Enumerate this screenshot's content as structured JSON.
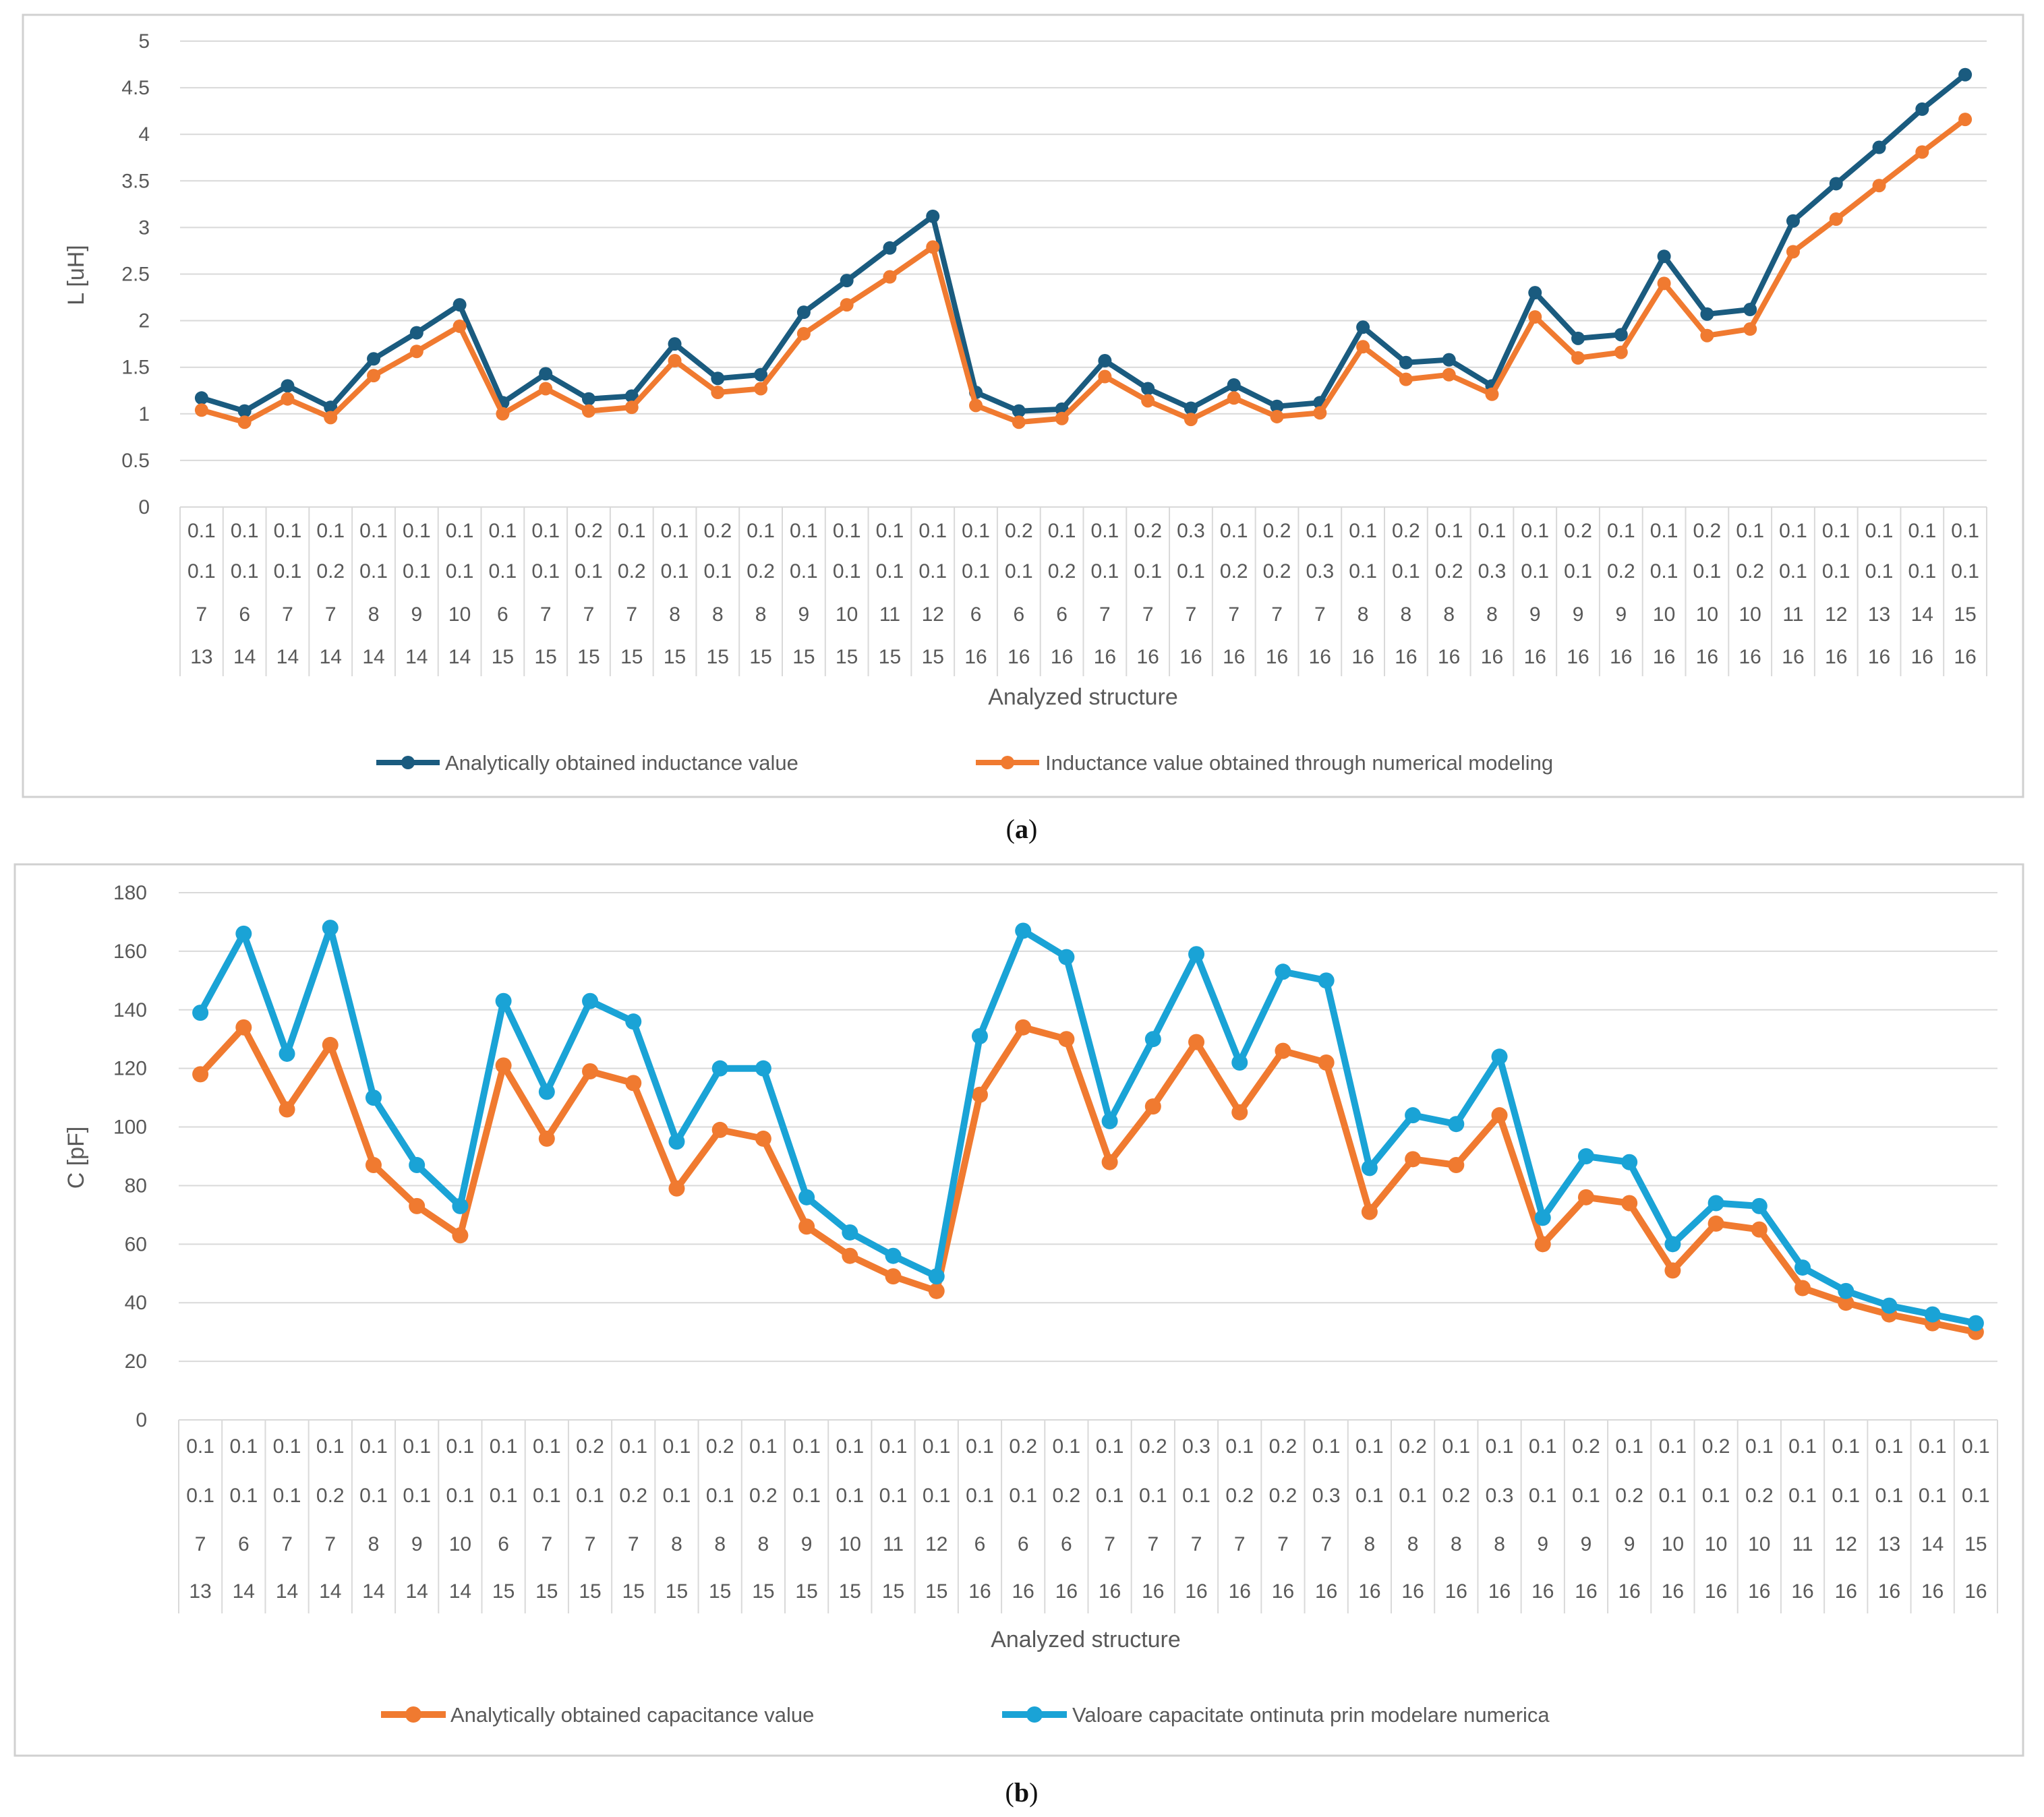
{
  "chart_data": [
    {
      "id": "a",
      "type": "line",
      "panel_label": "a",
      "ylabel": "L [uH]",
      "xlabel": "Analyzed structure",
      "ylim": [
        0,
        5
      ],
      "yticks": [
        "0",
        "0.5",
        "1",
        "1.5",
        "2",
        "2.5",
        "3",
        "3.5",
        "4",
        "4.5",
        "5"
      ],
      "grid": true,
      "legend_position": "bottom",
      "categories": [
        [
          "0.1",
          "0.1",
          "7",
          "13"
        ],
        [
          "0.1",
          "0.1",
          "6",
          "14"
        ],
        [
          "0.1",
          "0.1",
          "7",
          "14"
        ],
        [
          "0.1",
          "0.2",
          "7",
          "14"
        ],
        [
          "0.1",
          "0.1",
          "8",
          "14"
        ],
        [
          "0.1",
          "0.1",
          "9",
          "14"
        ],
        [
          "0.1",
          "0.1",
          "10",
          "14"
        ],
        [
          "0.1",
          "0.1",
          "6",
          "15"
        ],
        [
          "0.1",
          "0.1",
          "7",
          "15"
        ],
        [
          "0.2",
          "0.1",
          "7",
          "15"
        ],
        [
          "0.1",
          "0.2",
          "7",
          "15"
        ],
        [
          "0.1",
          "0.1",
          "8",
          "15"
        ],
        [
          "0.2",
          "0.1",
          "8",
          "15"
        ],
        [
          "0.1",
          "0.2",
          "8",
          "15"
        ],
        [
          "0.1",
          "0.1",
          "9",
          "15"
        ],
        [
          "0.1",
          "0.1",
          "10",
          "15"
        ],
        [
          "0.1",
          "0.1",
          "11",
          "15"
        ],
        [
          "0.1",
          "0.1",
          "12",
          "15"
        ],
        [
          "0.1",
          "0.1",
          "6",
          "16"
        ],
        [
          "0.2",
          "0.1",
          "6",
          "16"
        ],
        [
          "0.1",
          "0.2",
          "6",
          "16"
        ],
        [
          "0.1",
          "0.1",
          "7",
          "16"
        ],
        [
          "0.2",
          "0.1",
          "7",
          "16"
        ],
        [
          "0.3",
          "0.1",
          "7",
          "16"
        ],
        [
          "0.1",
          "0.2",
          "7",
          "16"
        ],
        [
          "0.2",
          "0.2",
          "7",
          "16"
        ],
        [
          "0.1",
          "0.3",
          "7",
          "16"
        ],
        [
          "0.1",
          "0.1",
          "8",
          "16"
        ],
        [
          "0.2",
          "0.1",
          "8",
          "16"
        ],
        [
          "0.1",
          "0.2",
          "8",
          "16"
        ],
        [
          "0.1",
          "0.3",
          "8",
          "16"
        ],
        [
          "0.1",
          "0.1",
          "9",
          "16"
        ],
        [
          "0.2",
          "0.1",
          "9",
          "16"
        ],
        [
          "0.1",
          "0.2",
          "9",
          "16"
        ],
        [
          "0.1",
          "0.1",
          "10",
          "16"
        ],
        [
          "0.2",
          "0.1",
          "10",
          "16"
        ],
        [
          "0.1",
          "0.2",
          "10",
          "16"
        ],
        [
          "0.1",
          "0.1",
          "11",
          "16"
        ],
        [
          "0.1",
          "0.1",
          "12",
          "16"
        ],
        [
          "0.1",
          "0.1",
          "13",
          "16"
        ],
        [
          "0.1",
          "0.1",
          "14",
          "16"
        ],
        [
          "0.1",
          "0.1",
          "15",
          "16"
        ]
      ],
      "series": [
        {
          "name": "Analytically obtained inductance value",
          "color": "#1a5b7f",
          "values": [
            1.17,
            1.03,
            1.3,
            1.07,
            1.59,
            1.87,
            2.17,
            1.12,
            1.43,
            1.16,
            1.19,
            1.75,
            1.38,
            1.42,
            2.09,
            2.43,
            2.78,
            3.12,
            1.23,
            1.03,
            1.05,
            1.57,
            1.27,
            1.06,
            1.31,
            1.08,
            1.12,
            1.93,
            1.55,
            1.58,
            1.3,
            2.3,
            1.81,
            1.85,
            2.69,
            2.07,
            2.12,
            3.07,
            3.47,
            3.86,
            4.27,
            4.64
          ]
        },
        {
          "name": "Inductance value obtained through numerical modeling",
          "color": "#f07a30",
          "values": [
            1.04,
            0.91,
            1.16,
            0.96,
            1.41,
            1.67,
            1.94,
            1.0,
            1.27,
            1.03,
            1.07,
            1.57,
            1.23,
            1.27,
            1.86,
            2.17,
            2.47,
            2.79,
            1.09,
            0.91,
            0.95,
            1.4,
            1.14,
            0.94,
            1.17,
            0.97,
            1.01,
            1.72,
            1.37,
            1.42,
            1.21,
            2.04,
            1.6,
            1.66,
            2.4,
            1.84,
            1.91,
            2.74,
            3.09,
            3.45,
            3.81,
            4.16
          ]
        }
      ]
    },
    {
      "id": "b",
      "type": "line",
      "panel_label": "b",
      "ylabel": "C [pF]",
      "xlabel": "Analyzed structure",
      "ylim": [
        0,
        180
      ],
      "yticks": [
        "0",
        "20",
        "40",
        "60",
        "80",
        "100",
        "120",
        "140",
        "160",
        "180"
      ],
      "grid": true,
      "legend_position": "bottom",
      "categories": [
        [
          "0.1",
          "0.1",
          "7",
          "13"
        ],
        [
          "0.1",
          "0.1",
          "6",
          "14"
        ],
        [
          "0.1",
          "0.1",
          "7",
          "14"
        ],
        [
          "0.1",
          "0.2",
          "7",
          "14"
        ],
        [
          "0.1",
          "0.1",
          "8",
          "14"
        ],
        [
          "0.1",
          "0.1",
          "9",
          "14"
        ],
        [
          "0.1",
          "0.1",
          "10",
          "14"
        ],
        [
          "0.1",
          "0.1",
          "6",
          "15"
        ],
        [
          "0.1",
          "0.1",
          "7",
          "15"
        ],
        [
          "0.2",
          "0.1",
          "7",
          "15"
        ],
        [
          "0.1",
          "0.2",
          "7",
          "15"
        ],
        [
          "0.1",
          "0.1",
          "8",
          "15"
        ],
        [
          "0.2",
          "0.1",
          "8",
          "15"
        ],
        [
          "0.1",
          "0.2",
          "8",
          "15"
        ],
        [
          "0.1",
          "0.1",
          "9",
          "15"
        ],
        [
          "0.1",
          "0.1",
          "10",
          "15"
        ],
        [
          "0.1",
          "0.1",
          "11",
          "15"
        ],
        [
          "0.1",
          "0.1",
          "12",
          "15"
        ],
        [
          "0.1",
          "0.1",
          "6",
          "16"
        ],
        [
          "0.2",
          "0.1",
          "6",
          "16"
        ],
        [
          "0.1",
          "0.2",
          "6",
          "16"
        ],
        [
          "0.1",
          "0.1",
          "7",
          "16"
        ],
        [
          "0.2",
          "0.1",
          "7",
          "16"
        ],
        [
          "0.3",
          "0.1",
          "7",
          "16"
        ],
        [
          "0.1",
          "0.2",
          "7",
          "16"
        ],
        [
          "0.2",
          "0.2",
          "7",
          "16"
        ],
        [
          "0.1",
          "0.3",
          "7",
          "16"
        ],
        [
          "0.1",
          "0.1",
          "8",
          "16"
        ],
        [
          "0.2",
          "0.1",
          "8",
          "16"
        ],
        [
          "0.1",
          "0.2",
          "8",
          "16"
        ],
        [
          "0.1",
          "0.3",
          "8",
          "16"
        ],
        [
          "0.1",
          "0.1",
          "9",
          "16"
        ],
        [
          "0.2",
          "0.1",
          "9",
          "16"
        ],
        [
          "0.1",
          "0.2",
          "9",
          "16"
        ],
        [
          "0.1",
          "0.1",
          "10",
          "16"
        ],
        [
          "0.2",
          "0.1",
          "10",
          "16"
        ],
        [
          "0.1",
          "0.2",
          "10",
          "16"
        ],
        [
          "0.1",
          "0.1",
          "11",
          "16"
        ],
        [
          "0.1",
          "0.1",
          "12",
          "16"
        ],
        [
          "0.1",
          "0.1",
          "13",
          "16"
        ],
        [
          "0.1",
          "0.1",
          "14",
          "16"
        ],
        [
          "0.1",
          "0.1",
          "15",
          "16"
        ]
      ],
      "series": [
        {
          "name": "Analytically obtained capacitance value",
          "color": "#f07a30",
          "values": [
            118,
            134,
            106,
            128,
            87,
            73,
            63,
            121,
            96,
            119,
            115,
            79,
            99,
            96,
            66,
            56,
            49,
            44,
            111,
            134,
            130,
            88,
            107,
            129,
            105,
            126,
            122,
            71,
            89,
            87,
            104,
            60,
            76,
            74,
            51,
            67,
            65,
            45,
            40,
            36,
            33,
            30
          ]
        },
        {
          "name": "Valoare capacitate ontinuta prin modelare numerica",
          "color": "#1aa3d6",
          "values": [
            139,
            166,
            125,
            168,
            110,
            87,
            73,
            143,
            112,
            143,
            136,
            95,
            120,
            120,
            76,
            64,
            56,
            49,
            131,
            167,
            158,
            102,
            130,
            159,
            122,
            153,
            150,
            86,
            104,
            101,
            124,
            69,
            90,
            88,
            60,
            74,
            73,
            52,
            44,
            39,
            36,
            33
          ]
        }
      ]
    }
  ]
}
